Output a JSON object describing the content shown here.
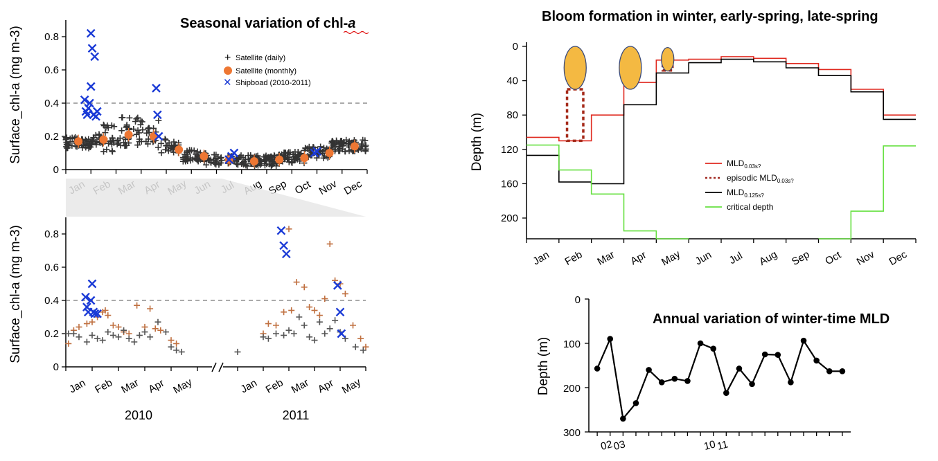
{
  "chart_data": [
    {
      "id": "seasonal",
      "type": "scatter",
      "title": "Seasonal variation of chl-",
      "title_italic": "a",
      "ylabel": "Surface_chl-a (mg m-3)",
      "ylim": [
        0,
        0.9
      ],
      "yticks": [
        "0",
        "0.2",
        "0.4",
        "0.6",
        "0.8"
      ],
      "ref_line": 0.4,
      "months": [
        "Jan",
        "Feb",
        "Mar",
        "Apr",
        "May",
        "Jun",
        "Jul",
        "Aug",
        "Sep",
        "Oct",
        "Nov",
        "Dec"
      ],
      "legend": [
        "Satellite (daily)",
        "Satellite (monthly)",
        "Shipboad (2010-2011)"
      ],
      "colors": {
        "daily": "#333333",
        "monthly": "#ee7733",
        "ship": "#1a3ad6",
        "ref": "#555555"
      },
      "series": [
        {
          "name": "Satellite (monthly)",
          "x": [
            0.5,
            1.5,
            2.5,
            3.5,
            4.5,
            5.5,
            6.5,
            7.5,
            8.5,
            9.5,
            10.5,
            11.5
          ],
          "values": [
            0.17,
            0.18,
            0.21,
            0.2,
            0.12,
            0.08,
            0.06,
            0.05,
            0.06,
            0.07,
            0.1,
            0.14
          ]
        },
        {
          "name": "Shipboad (2010-2011)",
          "x": [
            0.75,
            0.8,
            0.85,
            0.9,
            0.95,
            1.0,
            1.0,
            1.05,
            1.1,
            1.15,
            1.2,
            1.25,
            3.6,
            3.65,
            3.7,
            6.5,
            6.6,
            6.7,
            9.9,
            10.0
          ],
          "values": [
            0.42,
            0.35,
            0.33,
            0.37,
            0.4,
            0.5,
            0.82,
            0.73,
            0.33,
            0.68,
            0.32,
            0.35,
            0.49,
            0.33,
            0.2,
            0.06,
            0.08,
            0.1,
            0.1,
            0.11
          ]
        }
      ]
    },
    {
      "id": "shipboard",
      "type": "scatter",
      "ylabel": "Surface_chl-a (mg m-3)",
      "ylim": [
        0,
        0.9
      ],
      "yticks": [
        "0",
        "0.2",
        "0.4",
        "0.6",
        "0.8"
      ],
      "ref_line": 0.4,
      "months": [
        "Jan",
        "Feb",
        "Mar",
        "Apr",
        "May"
      ],
      "years": [
        "2010",
        "2011"
      ],
      "colors": {
        "orange": "#c07040",
        "gray": "#555555",
        "ship": "#1a3ad6"
      },
      "series": [
        {
          "name": "orange",
          "x": [
            0.1,
            0.3,
            0.5,
            0.8,
            1.0,
            1.2,
            1.4,
            1.5,
            1.6,
            1.8,
            2.0,
            2.2,
            2.4,
            2.7,
            3.0,
            3.2,
            3.4,
            3.6,
            4.0,
            4.2,
            7.0,
            7.2,
            7.5,
            7.8,
            8.0,
            8.1,
            8.3,
            8.6,
            8.8,
            9.0,
            9.2,
            9.4,
            9.6,
            9.8,
            10.0,
            10.2,
            10.5,
            10.8,
            11.0
          ],
          "values": [
            0.14,
            0.22,
            0.24,
            0.26,
            0.27,
            0.3,
            0.33,
            0.34,
            0.31,
            0.25,
            0.24,
            0.21,
            0.2,
            0.37,
            0.24,
            0.35,
            0.23,
            0.22,
            0.16,
            0.14,
            0.2,
            0.26,
            0.25,
            0.33,
            0.83,
            0.34,
            0.51,
            0.48,
            0.36,
            0.34,
            0.31,
            0.41,
            0.74,
            0.52,
            0.5,
            0.44,
            0.25,
            0.17,
            0.12
          ]
        },
        {
          "name": "gray",
          "x": [
            0.1,
            0.3,
            0.5,
            0.8,
            1.0,
            1.2,
            1.4,
            1.6,
            1.8,
            2.0,
            2.2,
            2.4,
            2.6,
            2.8,
            3.0,
            3.2,
            3.5,
            3.8,
            4.0,
            4.2,
            4.4,
            7.0,
            7.2,
            7.5,
            7.8,
            8.0,
            8.2,
            8.4,
            8.6,
            8.8,
            9.0,
            9.2,
            9.4,
            9.6,
            9.8,
            10.0,
            10.2,
            10.6,
            10.9,
            11.1
          ],
          "values": [
            0.2,
            0.2,
            0.18,
            0.15,
            0.19,
            0.17,
            0.16,
            0.21,
            0.19,
            0.18,
            0.22,
            0.17,
            0.15,
            0.19,
            0.21,
            0.18,
            0.27,
            0.21,
            0.12,
            0.1,
            0.09,
            0.18,
            0.17,
            0.2,
            0.19,
            0.22,
            0.2,
            0.3,
            0.25,
            0.18,
            0.16,
            0.27,
            0.2,
            0.23,
            0.28,
            0.21,
            0.17,
            0.12,
            0.1,
            0.09
          ]
        },
        {
          "name": "Shipboard",
          "x": [
            0.75,
            0.8,
            0.85,
            0.95,
            1.0,
            1.05,
            1.1,
            1.2,
            7.7,
            7.8,
            7.9,
            9.9,
            10.0,
            10.05
          ],
          "values": [
            0.42,
            0.36,
            0.33,
            0.4,
            0.5,
            0.33,
            0.32,
            0.32,
            0.82,
            0.73,
            0.68,
            0.49,
            0.33,
            0.2
          ]
        }
      ]
    },
    {
      "id": "bloom",
      "type": "line",
      "title": "Bloom formation in winter, early-spring, late-spring",
      "ylabel": "Depth (m)",
      "ylim": [
        0,
        225
      ],
      "yticks": [
        "0",
        "40",
        "80",
        "120",
        "160",
        "200"
      ],
      "months": [
        "Jan",
        "Feb",
        "Mar",
        "Apr",
        "May",
        "Jun",
        "Jul",
        "Aug",
        "Sep",
        "Oct",
        "Nov",
        "Dec"
      ],
      "legend": [
        {
          "label": "MLD",
          "sub": "0.03s?",
          "color": "#e02a20",
          "dash": false
        },
        {
          "label": "episodic MLD",
          "sub": "0.03s?",
          "color": "#a02820",
          "dash": true
        },
        {
          "label": "MLD",
          "sub": "0.125s?",
          "color": "#000000",
          "dash": false
        },
        {
          "label": "critical depth",
          "sub": "",
          "color": "#66e040",
          "dash": false
        }
      ],
      "colors": {
        "bloom": "#f4b942",
        "bloom_edge": "#3a4a7a",
        "episodic": "#a52a1a"
      },
      "series": [
        {
          "name": "MLD0.03",
          "steps": [
            [
              0,
              1,
              106
            ],
            [
              1,
              2,
              110
            ],
            [
              2,
              3,
              80
            ],
            [
              3,
              4,
              42
            ],
            [
              4,
              5,
              16
            ],
            [
              5,
              6,
              15
            ],
            [
              6,
              7,
              12
            ],
            [
              7,
              8,
              14
            ],
            [
              8,
              9,
              20
            ],
            [
              9,
              10,
              27
            ],
            [
              10,
              11,
              50
            ],
            [
              11,
              12,
              80
            ]
          ]
        },
        {
          "name": "MLD0.125",
          "steps": [
            [
              0,
              1,
              127
            ],
            [
              1,
              2,
              158
            ],
            [
              2,
              3,
              160
            ],
            [
              3,
              4,
              68
            ],
            [
              4,
              5,
              31
            ],
            [
              5,
              6,
              19
            ],
            [
              6,
              7,
              15
            ],
            [
              7,
              8,
              18
            ],
            [
              8,
              9,
              25
            ],
            [
              9,
              10,
              34
            ],
            [
              10,
              11,
              53
            ],
            [
              11,
              12,
              85
            ]
          ]
        },
        {
          "name": "critical depth",
          "steps": [
            [
              0,
              1,
              115
            ],
            [
              1,
              2,
              144
            ],
            [
              2,
              3,
              172
            ],
            [
              3,
              4,
              215
            ],
            [
              4,
              5,
              228
            ],
            [
              9,
              10,
              228
            ],
            [
              10,
              11,
              192
            ],
            [
              11,
              12,
              116
            ]
          ]
        }
      ],
      "blooms": [
        {
          "month": 1.5,
          "depth": 25,
          "size": "large"
        },
        {
          "month": 3.2,
          "depth": 25,
          "size": "large"
        },
        {
          "month": 4.35,
          "depth": 15,
          "size": "small"
        }
      ],
      "episodic": [
        {
          "from": 1.25,
          "to": 1.75,
          "depth_top": 50,
          "depth_bottom": 110
        },
        {
          "from": 4.2,
          "to": 4.5,
          "depth_top": 18,
          "depth_bottom": 28
        }
      ]
    },
    {
      "id": "annual",
      "type": "line",
      "title": "Annual variation of winter-time MLD",
      "ylabel": "Depth (m)",
      "ylim": [
        0,
        300
      ],
      "yticks": [
        "0",
        "100",
        "200",
        "300"
      ],
      "xticklabels": [
        {
          "pos": 2,
          "text": "02"
        },
        {
          "pos": 3,
          "text": "03"
        },
        {
          "pos": 10,
          "text": "10"
        },
        {
          "pos": 11,
          "text": "11"
        }
      ],
      "x": [
        1,
        2,
        3,
        4,
        5,
        6,
        7,
        8,
        9,
        10,
        11,
        12,
        13,
        14,
        15,
        16,
        17,
        18,
        19,
        20
      ],
      "values": [
        157,
        90,
        270,
        235,
        160,
        188,
        180,
        185,
        100,
        112,
        212,
        157,
        192,
        125,
        126,
        188,
        94,
        139,
        163,
        163
      ]
    }
  ]
}
